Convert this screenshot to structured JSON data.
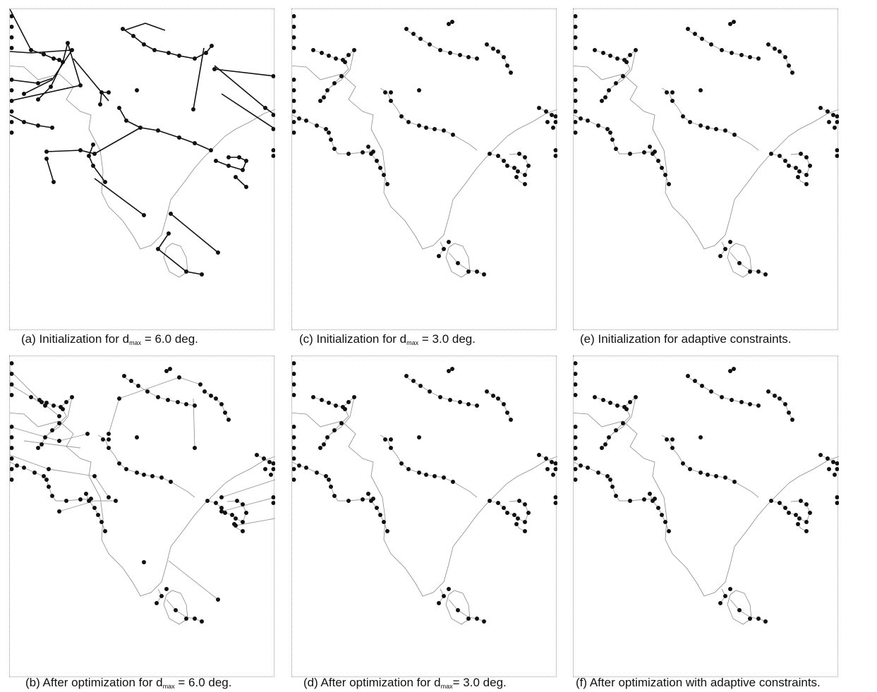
{
  "figure": {
    "panels": [
      {
        "id": "a",
        "caption_pre": "(a) Initialization for d",
        "caption_sub": "max",
        "caption_post": " = 6.0 deg.",
        "style": "dark"
      },
      {
        "id": "c",
        "caption_pre": "(c) Initialization for d",
        "caption_sub": "max",
        "caption_post": " = 3.0 deg.",
        "style": "light"
      },
      {
        "id": "e",
        "caption_pre": "(e) Initialization for adaptive constraints.",
        "caption_sub": "",
        "caption_post": "",
        "style": "light"
      },
      {
        "id": "b",
        "caption_pre": "(b) After optimization for d",
        "caption_sub": "max",
        "caption_post": " = 6.0 deg.",
        "style": "light"
      },
      {
        "id": "d",
        "caption_pre": "(d) After optimization for d",
        "caption_sub": "max",
        "caption_post": "= 3.0 deg.",
        "style": "light"
      },
      {
        "id": "f",
        "caption_pre": "(f) After optimization with adaptive constraints.",
        "caption_sub": "",
        "caption_post": "",
        "style": "light"
      }
    ]
  },
  "colors": {
    "coastline": "#8a8a8a",
    "track_dark": "#111111",
    "track_light": "#9a9a9a",
    "dot": "#111111",
    "frame": "#9a9a9a"
  }
}
